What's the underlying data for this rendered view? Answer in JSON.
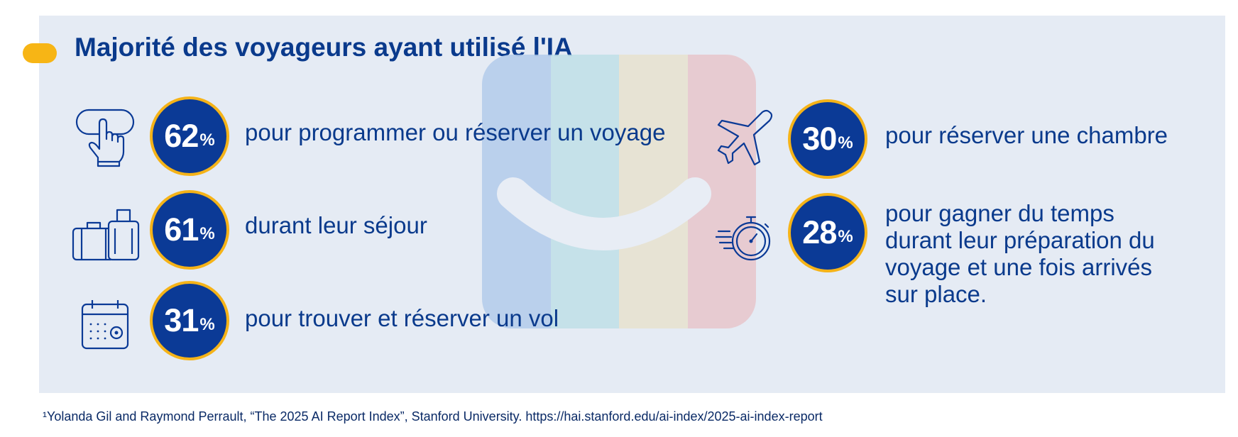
{
  "title": "Majorité des voyageurs ayant utilisé l'IA",
  "colors": {
    "navy": "#0b3a96",
    "gold": "#f5b318",
    "panel": "#e5ebf4",
    "logo_stripes": [
      "#b3cceb",
      "#c0e0e8",
      "#e8e2cf",
      "#e8c6cc"
    ]
  },
  "stats_left": [
    {
      "icon": "hand-pointer-icon",
      "value": "62",
      "unit": "%",
      "label": "pour programmer ou réserver un voyage"
    },
    {
      "icon": "luggage-icon",
      "value": "61",
      "unit": "%",
      "label": "durant leur séjour"
    },
    {
      "icon": "calendar-icon",
      "value": "31",
      "unit": "%",
      "label": "pour trouver et réserver un vol"
    }
  ],
  "stats_right": [
    {
      "icon": "airplane-icon",
      "value": "30",
      "unit": "%",
      "label": "pour réserver une chambre"
    },
    {
      "icon": "stopwatch-icon",
      "value": "28",
      "unit": "%",
      "label": "pour gagner du temps durant leur préparation du voyage et une fois arrivés sur place."
    }
  ],
  "footnote": "¹Yolanda Gil and Raymond Perrault, “The 2025 AI Report Index”, Stanford University. https://hai.stanford.edu/ai-index/2025-ai-index-report"
}
